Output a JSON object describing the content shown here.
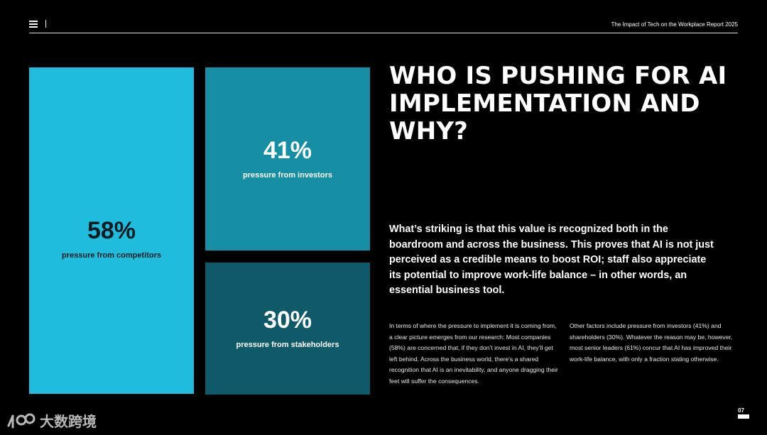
{
  "header": {
    "report_title": "The Impact of Tech on the Workplace Report 2025"
  },
  "stats": {
    "competitors": {
      "value": "58%",
      "label": "pressure from competitors"
    },
    "investors": {
      "value": "41%",
      "label": "pressure from investors"
    },
    "stakeholders": {
      "value": "30%",
      "label": "pressure from stakeholders"
    }
  },
  "headline": "WHO IS PUSHING FOR AI IMPLEMENTATION AND WHY?",
  "lead": "What’s striking is that this value is recognized both in the boardroom and across the business. This proves that AI is not just perceived as a credible means to boost ROI; staff also appreciate its potential to improve work-life balance – in other words, an essential business tool.",
  "body": {
    "col1": "In terms of where the pressure to implement it is coming from, a clear picture emerges from our research: Most companies (58%) are concerned that, if they don’t invest in AI, they’ll get left behind. Across the business world, there’s a shared recognition that AI is an inevitability, and anyone dragging their feet will suffer the consequences.",
    "col2": "Other factors include pressure from investors (41%) and shareholders (30%). Whatever the reason may be, however, most senior leaders (61%) concur that AI has improved their work-life balance, with only a fraction stating otherwise."
  },
  "footer": {
    "page_number": "07",
    "watermark_text": "大数跨境"
  },
  "colors": {
    "background": "#000000",
    "tile_competitors": "#1fbcdc",
    "tile_investors": "#168ea3",
    "tile_stakeholders": "#0f5a69"
  }
}
